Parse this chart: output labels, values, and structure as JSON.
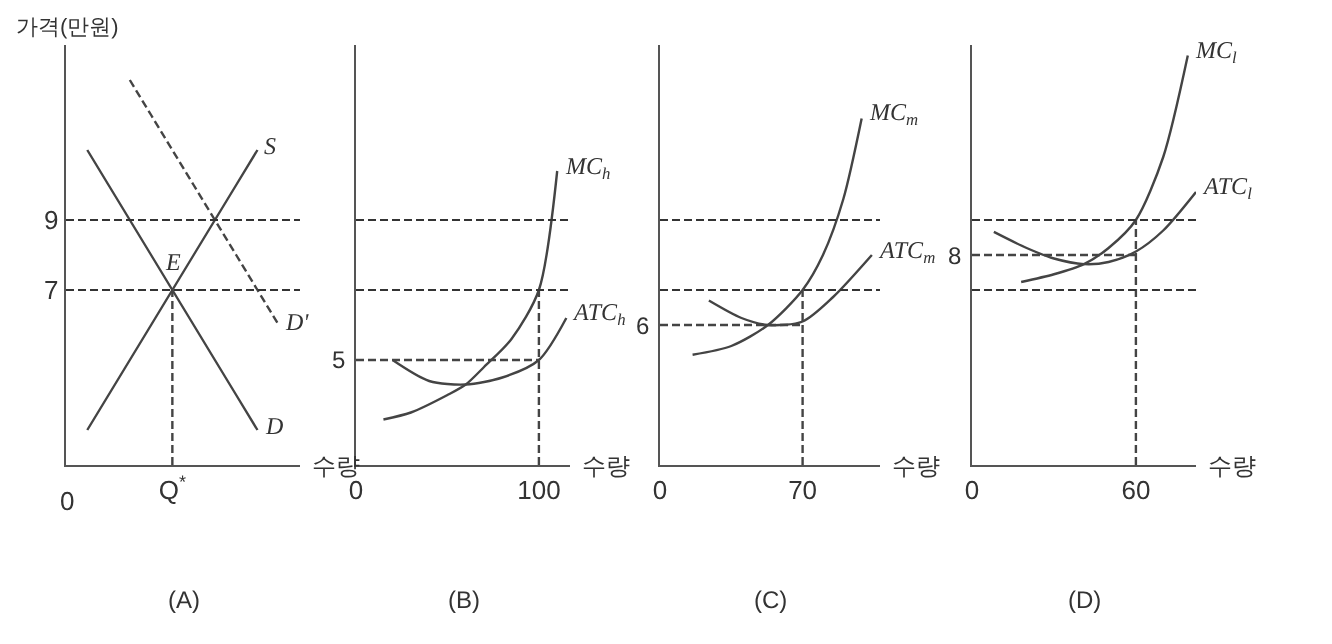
{
  "chart_data": [
    {
      "type": "line",
      "title": "(A)",
      "xlabel": "수량",
      "ylabel": "가격(만원)",
      "categories": [
        null,
        null,
        null,
        null,
        null,
        "Q$^{*}$",
        null,
        null,
        null,
        null,
        null,
        null
      ],
      "ylim": [
        2,
        14
      ],
      "yticks": [
        7,
        9
      ],
      "series": [
        {
          "name": "S",
          "color": "#444444",
          "values": [
            null,
            3,
            4,
            5,
            6,
            7,
            8,
            9,
            10,
            11,
            null,
            null
          ]
        },
        {
          "name": "D",
          "color": "#444444",
          "values": [
            null,
            11,
            10,
            9,
            8,
            7,
            6,
            5,
            4,
            3,
            null,
            null
          ]
        },
        {
          "name": "D'",
          "color": "#444444",
          "line_style": "dashed",
          "values": [
            null,
            null,
            null,
            13,
            12,
            11,
            10,
            9,
            8,
            7,
            6,
            null
          ]
        },
        {
          "color": "#444444",
          "line_style": "dashed",
          "x": [
            "Q$^{*}$",
            "Q$^{*}$"
          ],
          "values": [
            2,
            7
          ]
        }
      ],
      "ref_lines": [
        {
          "axis": "y",
          "value": 9,
          "color": "#333333",
          "line_style": "dashed"
        },
        {
          "axis": "y",
          "value": 7,
          "color": "#333333",
          "line_style": "dashed"
        }
      ],
      "annotations": [
        {
          "text": "E",
          "x": "Q$^{*}$",
          "y": 7
        },
        "0"
      ]
    },
    {
      "type": "line",
      "title": "(B)",
      "xlabel": "수량",
      "xlim": [
        0,
        117
      ],
      "ylim": [
        2,
        14
      ],
      "xticks": [
        0,
        100
      ],
      "tick_labels": "x",
      "series": [
        {
          "name": "MC$_{h}$",
          "color": "#444444",
          "x": [
            15,
            30,
            50,
            60,
            70,
            85,
            100,
            110
          ],
          "values": [
            3.3,
            3.5,
            4.0,
            4.3,
            4.8,
            5.6,
            7,
            10.4
          ]
        },
        {
          "name": "ATC$_{h}$",
          "color": "#444444",
          "x": [
            20,
            40,
            60,
            80,
            100,
            115
          ],
          "values": [
            5,
            4.4,
            4.3,
            4.5,
            5,
            6.2
          ]
        },
        {
          "color": "#444444",
          "line_style": "dashed",
          "x": [
            0,
            100
          ],
          "values": [
            5,
            5
          ]
        },
        {
          "color": "#444444",
          "line_style": "dashed",
          "x": [
            100,
            100
          ],
          "values": [
            2,
            7
          ]
        }
      ],
      "ref_lines": [
        {
          "axis": "y",
          "value": 9,
          "color": "#333333",
          "line_style": "dashed"
        },
        {
          "axis": "y",
          "value": 7,
          "color": "#333333",
          "line_style": "dashed"
        }
      ],
      "annotations": [
        {
          "text": "5",
          "x": 0,
          "y": 5
        }
      ]
    },
    {
      "type": "line",
      "title": "(C)",
      "xlabel": "수량",
      "xlim": [
        0,
        108
      ],
      "ylim": [
        2,
        14
      ],
      "xticks": [
        0,
        70
      ],
      "tick_labels": "x",
      "series": [
        {
          "name": "MC$_{m}$",
          "color": "#444444",
          "x": [
            16,
            35,
            53,
            70,
            80,
            90,
            99
          ],
          "values": [
            5.15,
            5.4,
            6.0,
            7.0,
            8.0,
            9.6,
            11.9
          ]
        },
        {
          "name": "ATC$_{m}$",
          "color": "#444444",
          "x": [
            24,
            40,
            53,
            70,
            85,
            104
          ],
          "values": [
            6.7,
            6.2,
            6.0,
            6.1,
            6.8,
            8.0
          ]
        },
        {
          "color": "#444444",
          "line_style": "dashed",
          "x": [
            0,
            70
          ],
          "values": [
            6,
            6
          ]
        },
        {
          "color": "#444444",
          "line_style": "dashed",
          "x": [
            70,
            70
          ],
          "values": [
            2,
            7
          ]
        }
      ],
      "ref_lines": [
        {
          "axis": "y",
          "value": 9,
          "color": "#333333",
          "line_style": "dashed"
        },
        {
          "axis": "y",
          "value": 7,
          "color": "#333333",
          "line_style": "dashed"
        }
      ],
      "annotations": [
        {
          "text": "6",
          "x": 0,
          "y": 6
        }
      ]
    },
    {
      "type": "line",
      "title": "(D)",
      "xlabel": "수량",
      "xlim": [
        0,
        82
      ],
      "ylim": [
        2,
        14
      ],
      "xticks": [
        0,
        60
      ],
      "tick_labels": "x",
      "series": [
        {
          "name": "MC$_{l}$",
          "color": "#444444",
          "x": [
            18,
            30,
            41,
            50,
            60,
            70,
            79
          ],
          "values": [
            7.23,
            7.45,
            7.74,
            8.2,
            9,
            10.8,
            13.7
          ]
        },
        {
          "name": "ATC$_{l}$",
          "color": "#444444",
          "x": [
            8,
            20,
            30,
            41,
            50,
            60,
            70,
            82
          ],
          "values": [
            8.66,
            8.2,
            7.9,
            7.74,
            7.8,
            8.1,
            8.7,
            9.8
          ]
        },
        {
          "color": "#444444",
          "line_style": "dashed",
          "x": [
            0,
            60
          ],
          "values": [
            8,
            8
          ]
        },
        {
          "color": "#444444",
          "line_style": "dashed",
          "x": [
            60,
            60
          ],
          "values": [
            2,
            9
          ]
        }
      ],
      "ref_lines": [
        {
          "axis": "y",
          "value": 9,
          "color": "#333333",
          "line_style": "dashed"
        },
        {
          "axis": "y",
          "value": 7,
          "color": "#333333",
          "line_style": "dashed"
        }
      ],
      "annotations": [
        {
          "text": "8",
          "x": 0,
          "y": 8
        }
      ]
    }
  ]
}
